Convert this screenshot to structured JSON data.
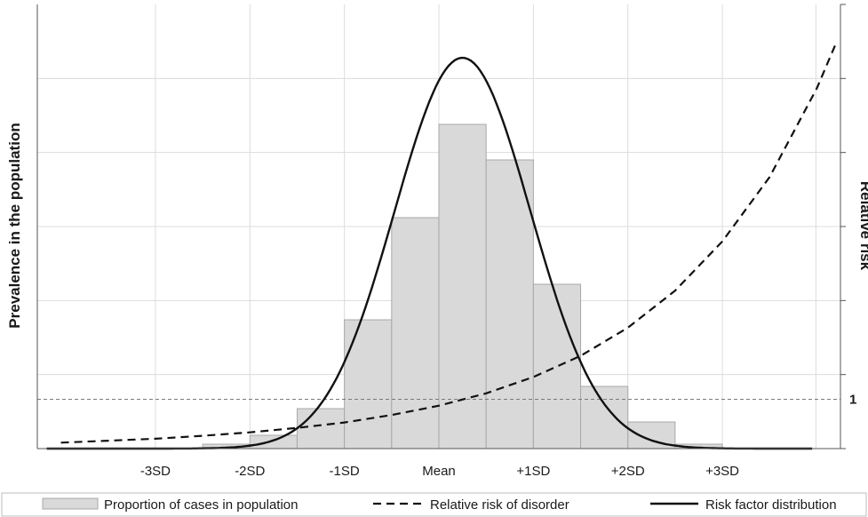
{
  "chart_data": {
    "type": "bar",
    "title": "",
    "ylabel_left": "Prevalence in the population",
    "ylabel_right": "Relative risk",
    "x_tick_labels": [
      "-3SD",
      "-2SD",
      "-1SD",
      "Mean",
      "+1SD",
      "+2SD",
      "+3SD"
    ],
    "x_tick_positions": [
      -3,
      -2,
      -1,
      0,
      1,
      2,
      3
    ],
    "xlim": [
      -4.25,
      4.25
    ],
    "grid": true,
    "legend_position": "bottom",
    "reference_line": {
      "value": 1,
      "label": "1",
      "axis": "right"
    },
    "series": [
      {
        "name": "Proportion of cases in population",
        "kind": "bar",
        "color": "#d9d9d9",
        "axis": "left",
        "bin_width": 0.5,
        "bin_centers": [
          -3.25,
          -2.75,
          -2.25,
          -1.75,
          -1.25,
          -0.75,
          -0.25,
          0.25,
          0.75,
          1.25,
          1.75,
          2.25,
          2.75
        ],
        "values": [
          0.0,
          0.0,
          0.01,
          0.03,
          0.09,
          0.29,
          0.52,
          0.73,
          0.65,
          0.37,
          0.14,
          0.06,
          0.01
        ]
      },
      {
        "name": "Relative risk of disorder",
        "kind": "line",
        "style": "dashed",
        "color": "#111111",
        "axis": "right",
        "x": [
          -4.0,
          -3.5,
          -3.0,
          -2.5,
          -2.0,
          -1.5,
          -1.0,
          -0.5,
          0.0,
          0.5,
          1.0,
          1.5,
          2.0,
          2.5,
          3.0,
          3.5,
          4.0,
          4.2
        ],
        "y": [
          0.12,
          0.16,
          0.2,
          0.26,
          0.33,
          0.42,
          0.53,
          0.68,
          0.87,
          1.12,
          1.45,
          1.88,
          2.45,
          3.2,
          4.2,
          5.5,
          7.3,
          8.2
        ]
      },
      {
        "name": "Risk factor distribution",
        "kind": "line",
        "style": "solid",
        "color": "#111111",
        "axis": "left",
        "distribution": {
          "mean": 0.25,
          "sd": 0.72,
          "peak": 0.88
        }
      }
    ],
    "ylim_left": [
      0,
      1
    ],
    "ylim_right": [
      0,
      9
    ]
  }
}
